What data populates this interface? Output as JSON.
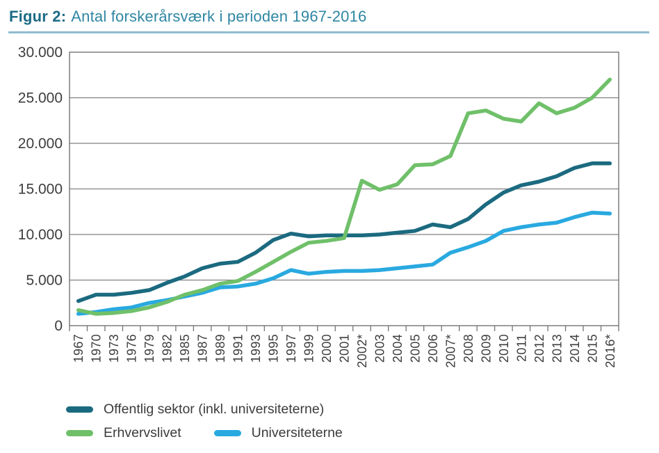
{
  "figure": {
    "label": "Figur 2:",
    "title": "Antal forskerårsværk i perioden 1967-2016"
  },
  "chart_data": {
    "type": "line",
    "title": "Antal forskerårsværk i perioden 1967-2016",
    "xlabel": "",
    "ylabel": "",
    "ylim": [
      0,
      30000
    ],
    "grid": "horizontal",
    "legend_position": "bottom-left",
    "y_ticks": [
      "30.000",
      "25.000",
      "20.000",
      "15.000",
      "10.000",
      "5.000",
      "0"
    ],
    "y_tick_values": [
      30000,
      25000,
      20000,
      15000,
      10000,
      5000,
      0
    ],
    "categories": [
      "1967",
      "1970",
      "1973",
      "1976",
      "1979",
      "1982",
      "1985",
      "1987",
      "1989",
      "1991",
      "1993",
      "1995",
      "1997",
      "1999",
      "2000",
      "2001",
      "2002*",
      "2003",
      "2004",
      "2005",
      "2006",
      "2007*",
      "2008",
      "2009",
      "2010",
      "2011",
      "2012",
      "2013",
      "2014",
      "2015",
      "2016*"
    ],
    "series": [
      {
        "name": "Offentlig sektor (inkl. universiteterne)",
        "color": "#1B6A80",
        "values": [
          2700,
          3400,
          3400,
          3600,
          3900,
          4700,
          5400,
          6300,
          6800,
          7000,
          8000,
          9400,
          10100,
          9800,
          9900,
          9900,
          9900,
          10000,
          10200,
          10400,
          11100,
          10800,
          11700,
          13300,
          14600,
          15400,
          15800,
          16400,
          17300,
          17800,
          17800
        ]
      },
      {
        "name": "Erhvervslivet",
        "color": "#6FC069",
        "values": [
          1700,
          1300,
          1400,
          1600,
          2000,
          2600,
          3400,
          3900,
          4600,
          4900,
          5900,
          7000,
          8100,
          9100,
          9300,
          9600,
          15900,
          14900,
          15500,
          17600,
          17700,
          18600,
          23300,
          23600,
          22700,
          22400,
          24400,
          23300,
          23900,
          25000,
          27000
        ]
      },
      {
        "name": "Universiteterne",
        "color": "#29A9E0",
        "values": [
          1300,
          1500,
          1800,
          2000,
          2500,
          2800,
          3200,
          3600,
          4200,
          4300,
          4600,
          5200,
          6100,
          5700,
          5900,
          6000,
          6000,
          6100,
          6300,
          6500,
          6700,
          8000,
          8600,
          9300,
          10400,
          10800,
          11100,
          11300,
          11900,
          12400,
          12300
        ]
      }
    ]
  },
  "colors": {
    "title_label": "#1E6B86",
    "title_text": "#2F86A3",
    "title_rule": "#8FBCCE",
    "gridline": "#808080",
    "frame": "#737373",
    "axis_text": "#3D3D3D",
    "background": "#FFFFFF"
  }
}
